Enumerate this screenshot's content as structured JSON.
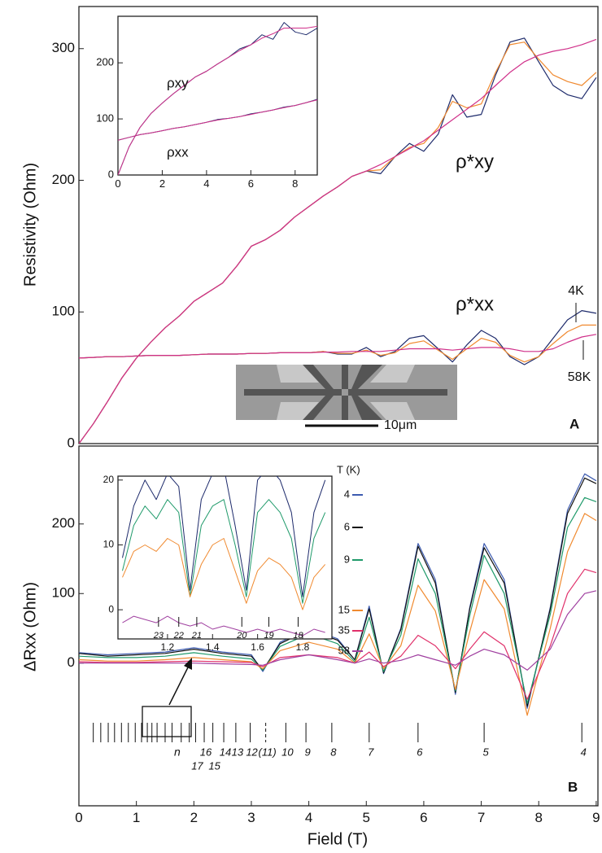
{
  "chart_data": [
    {
      "type": "line",
      "ylabel": "Resistivity (Ohm)",
      "xlim": [
        0,
        9.03
      ],
      "ylim": [
        0,
        332
      ],
      "yticks": [
        0,
        100,
        200,
        300
      ],
      "annotations": [
        "ρ*xy",
        "ρ*xx",
        "A",
        "10μm"
      ],
      "x": [
        0,
        0.25,
        0.5,
        0.75,
        1,
        1.25,
        1.5,
        1.75,
        2,
        2.25,
        2.5,
        2.75,
        3,
        3.25,
        3.5,
        3.75,
        4,
        4.25,
        4.5,
        4.75,
        5,
        5.25,
        5.5,
        5.75,
        6,
        6.25,
        6.5,
        6.75,
        7,
        7.25,
        7.5,
        7.75,
        8,
        8.25,
        8.5,
        8.75,
        9
      ],
      "series": [
        {
          "color": "#1d2a6b",
          "values": [
            0,
            15,
            32,
            50,
            65,
            77,
            88,
            97,
            108,
            115,
            122,
            135,
            150,
            155,
            162,
            172,
            180,
            188,
            195,
            203,
            207,
            205,
            218,
            228,
            222,
            235,
            265,
            248,
            250,
            280,
            305,
            308,
            290,
            272,
            265,
            262,
            278
          ]
        },
        {
          "color": "#f08a30",
          "values": [
            0,
            15,
            32,
            50,
            65,
            77,
            88,
            97,
            108,
            115,
            122,
            135,
            150,
            155,
            162,
            172,
            180,
            188,
            195,
            203,
            207,
            208,
            218,
            225,
            228,
            240,
            260,
            255,
            258,
            282,
            303,
            305,
            292,
            280,
            275,
            272,
            282
          ]
        },
        {
          "color": "#d0308a",
          "values": [
            0,
            15,
            32,
            50,
            65,
            77,
            88,
            97,
            108,
            115,
            122,
            135,
            150,
            155,
            162,
            172,
            180,
            188,
            195,
            203,
            207,
            212,
            218,
            224,
            230,
            238,
            246,
            254,
            262,
            272,
            282,
            290,
            295,
            298,
            300,
            303,
            307
          ]
        },
        {
          "name": "4K",
          "color": "#1d2a6b",
          "values": [
            65,
            65.5,
            66,
            66,
            66.5,
            67,
            67,
            67,
            67.5,
            68,
            68,
            68,
            68.5,
            68.5,
            69,
            69,
            69,
            70,
            68,
            68,
            73,
            66,
            70,
            80,
            82,
            72,
            62,
            75,
            86,
            80,
            66,
            60,
            66,
            80,
            94,
            101,
            99
          ]
        },
        {
          "color": "#f08a30",
          "values": [
            65,
            65.5,
            66,
            66,
            66.5,
            67,
            67,
            67,
            67.5,
            68,
            68,
            68,
            68.5,
            68.5,
            69,
            69,
            69,
            70,
            68.5,
            68.5,
            71,
            67,
            69,
            76,
            78,
            71,
            64,
            72,
            80,
            77,
            67,
            62,
            66,
            76,
            85,
            90,
            90
          ]
        },
        {
          "name": "58K",
          "color": "#d0308a",
          "values": [
            65,
            65.5,
            66,
            66,
            66.5,
            67,
            67,
            67,
            67.5,
            68,
            68,
            68,
            68.5,
            68.5,
            69,
            69,
            69,
            69.5,
            69.5,
            70,
            70,
            70,
            71,
            72,
            72,
            72,
            71,
            72,
            73,
            73,
            72,
            70,
            70,
            72,
            77,
            81,
            83
          ]
        }
      ]
    },
    {
      "type": "line",
      "xlim": [
        0,
        9
      ],
      "ylim": [
        0,
        283
      ],
      "xticks": [
        0,
        2,
        4,
        6,
        8
      ],
      "yticks": [
        0,
        100,
        200
      ],
      "annotations": [
        "ρxy",
        "ρxx"
      ],
      "x": [
        0,
        0.5,
        1,
        1.5,
        2,
        2.5,
        3,
        3.5,
        4,
        4.5,
        5,
        5.5,
        6,
        6.5,
        7,
        7.5,
        8,
        8.5,
        9
      ],
      "series": [
        {
          "color": "#1d2a6b",
          "values": [
            0,
            50,
            85,
            110,
            128,
            145,
            160,
            175,
            185,
            198,
            210,
            225,
            232,
            250,
            242,
            272,
            255,
            250,
            262
          ]
        },
        {
          "color": "#d0308a",
          "values": [
            0,
            50,
            85,
            110,
            128,
            145,
            160,
            175,
            185,
            198,
            210,
            222,
            232,
            244,
            252,
            262,
            262,
            262,
            265
          ]
        },
        {
          "color": "#1d2a6b",
          "values": [
            62,
            67,
            72,
            75,
            79,
            83,
            86,
            90,
            94,
            99,
            101,
            104,
            109,
            112,
            116,
            121,
            124,
            129,
            135
          ]
        },
        {
          "color": "#d0308a",
          "values": [
            62,
            67,
            72,
            75,
            79,
            83,
            86,
            90,
            94,
            98,
            101,
            104,
            108,
            112,
            116,
            120,
            124,
            129,
            134
          ]
        }
      ]
    },
    {
      "type": "line",
      "ylabel": "ΔRxx (Ohm)",
      "xlabel": "Field (T)",
      "xlim": [
        0,
        9.03
      ],
      "ylim": [
        -205,
        312
      ],
      "xticks": [
        0,
        1,
        2,
        3,
        4,
        5,
        6,
        7,
        8,
        9
      ],
      "yticks": [
        0,
        100,
        200
      ],
      "legend_title": "T (K)",
      "annotations": [
        "B",
        "n"
      ],
      "level_marks": [
        {
          "x": 2.03,
          "label": "17"
        },
        {
          "x": 2.18,
          "label": "16"
        },
        {
          "x": 2.33,
          "label": "15"
        },
        {
          "x": 2.52,
          "label": "14"
        },
        {
          "x": 2.73,
          "label": "13"
        },
        {
          "x": 2.98,
          "label": "12"
        },
        {
          "x": 3.25,
          "label": "(11)"
        },
        {
          "x": 3.6,
          "label": "10"
        },
        {
          "x": 3.95,
          "label": "9"
        },
        {
          "x": 4.4,
          "label": "8"
        },
        {
          "x": 5.05,
          "label": "7"
        },
        {
          "x": 5.9,
          "label": "6"
        },
        {
          "x": 7.05,
          "label": "5"
        },
        {
          "x": 8.75,
          "label": "4"
        }
      ],
      "level_marks_unlabeled": [
        0.25,
        0.38,
        0.51,
        0.62,
        0.74,
        0.86,
        0.98,
        1.09,
        1.19,
        1.27,
        1.36,
        1.5,
        1.62,
        1.78,
        1.92
      ],
      "x": [
        0,
        0.5,
        1,
        1.5,
        2,
        2.5,
        3,
        3.2,
        3.5,
        4,
        4.5,
        4.8,
        5.05,
        5.3,
        5.6,
        5.9,
        6.2,
        6.55,
        6.8,
        7.05,
        7.4,
        7.8,
        8.2,
        8.5,
        8.8,
        9
      ],
      "series": [
        {
          "name": "4",
          "color": "#3d5bb0",
          "values": [
            15,
            12,
            14,
            16,
            22,
            16,
            12,
            -12,
            30,
            50,
            35,
            5,
            82,
            -15,
            50,
            172,
            120,
            -45,
            80,
            172,
            120,
            -65,
            80,
            220,
            272,
            262
          ]
        },
        {
          "name": "6",
          "color": "#111111",
          "values": [
            14,
            10,
            12,
            14,
            20,
            14,
            10,
            -10,
            28,
            48,
            33,
            5,
            78,
            -14,
            48,
            168,
            115,
            -42,
            78,
            166,
            115,
            -62,
            78,
            215,
            266,
            258
          ]
        },
        {
          "name": "9",
          "color": "#1f9a6a",
          "values": [
            10,
            8,
            8,
            10,
            15,
            10,
            6,
            -10,
            24,
            42,
            28,
            2,
            66,
            -12,
            40,
            150,
            100,
            -40,
            68,
            155,
            100,
            -58,
            70,
            195,
            238,
            232
          ]
        },
        {
          "name": "15",
          "color": "#f08a30",
          "values": [
            5,
            3,
            3,
            5,
            8,
            5,
            2,
            -8,
            18,
            30,
            20,
            0,
            42,
            -8,
            25,
            112,
            75,
            -38,
            45,
            120,
            78,
            -75,
            50,
            160,
            215,
            205
          ]
        },
        {
          "name": "35",
          "color": "#e0306a",
          "values": [
            2,
            1,
            1,
            2,
            3,
            2,
            1,
            -5,
            8,
            12,
            8,
            0,
            16,
            -5,
            10,
            40,
            25,
            -8,
            20,
            45,
            25,
            -52,
            25,
            100,
            135,
            130
          ]
        },
        {
          "name": "58",
          "color": "#a040a0",
          "values": [
            0,
            0,
            0,
            0,
            0,
            -1,
            -2,
            -3,
            5,
            12,
            5,
            0,
            6,
            0,
            4,
            12,
            5,
            -3,
            10,
            20,
            12,
            -10,
            20,
            70,
            100,
            104
          ]
        }
      ]
    },
    {
      "type": "line",
      "xlim": [
        0.98,
        1.93
      ],
      "ylim": [
        -4.5,
        20.6
      ],
      "xticks": [
        1.2,
        1.4,
        1.6,
        1.8
      ],
      "yticks": [
        0,
        10,
        20
      ],
      "level_marks": [
        {
          "x": 1.16,
          "label": "23"
        },
        {
          "x": 1.25,
          "label": "22"
        },
        {
          "x": 1.33,
          "label": "21"
        },
        {
          "x": 1.53,
          "label": "20"
        },
        {
          "x": 1.65,
          "label": "19"
        },
        {
          "x": 1.78,
          "label": "18"
        }
      ],
      "x": [
        1,
        1.05,
        1.1,
        1.15,
        1.2,
        1.25,
        1.3,
        1.35,
        1.4,
        1.45,
        1.5,
        1.55,
        1.6,
        1.65,
        1.7,
        1.75,
        1.8,
        1.85,
        1.9
      ],
      "series": [
        {
          "color": "#1d2a6b",
          "values": [
            8,
            16,
            20,
            17,
            21,
            19,
            3,
            17,
            21,
            22,
            13,
            3,
            20,
            22,
            20,
            15,
            2,
            15,
            20
          ]
        },
        {
          "color": "#1f9a6a",
          "values": [
            6,
            13,
            16,
            14,
            17,
            15,
            2,
            13,
            16,
            17,
            10,
            2,
            15,
            17,
            15,
            11,
            1,
            11,
            15
          ]
        },
        {
          "color": "#f08a30",
          "values": [
            5,
            9,
            10,
            9,
            11,
            10,
            2,
            7,
            10,
            11,
            6,
            1,
            6,
            8,
            7,
            5,
            0,
            5,
            7
          ]
        },
        {
          "color": "#a040a0",
          "values": [
            -2,
            -1,
            -1.5,
            -2,
            -1,
            -2,
            -2.5,
            -2,
            -3,
            -2.5,
            -3,
            -3.5,
            -3,
            -3.5,
            -3,
            -3.5,
            -4,
            -3,
            -3.5
          ]
        }
      ]
    }
  ]
}
